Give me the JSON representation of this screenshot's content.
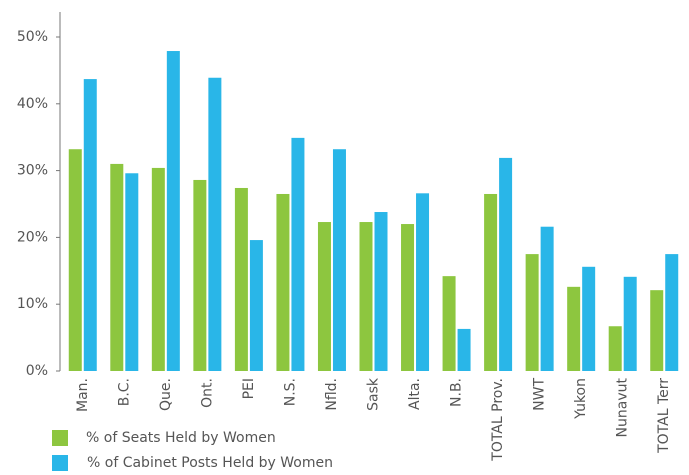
{
  "chart_data": {
    "type": "bar",
    "categories": [
      "Man.",
      "B.C.",
      "Que.",
      "Ont.",
      "PEI",
      "N.S.",
      "Nfld.",
      "Sask",
      "Alta.",
      "N.B.",
      "TOTAL Prov.",
      "NWT",
      "Yukon",
      "Nunavut",
      "TOTAL Terr"
    ],
    "series": [
      {
        "name": "% of Seats Held by Women",
        "color": "#8dc63f",
        "values": [
          33.2,
          31.0,
          30.4,
          28.6,
          27.4,
          26.5,
          22.3,
          22.3,
          22.0,
          14.2,
          26.5,
          17.5,
          12.6,
          6.7,
          12.1
        ]
      },
      {
        "name": "% of Cabinet Posts Held by Women",
        "color": "#29b6e8",
        "values": [
          43.7,
          29.6,
          47.9,
          43.9,
          19.6,
          34.9,
          33.2,
          23.8,
          26.6,
          6.3,
          31.9,
          21.6,
          15.6,
          14.1,
          17.5
        ]
      }
    ],
    "ylim": [
      0,
      50
    ],
    "yticks": [
      {
        "value": 0,
        "label": "0%"
      },
      {
        "value": 10,
        "label": "10%"
      },
      {
        "value": 20,
        "label": "20%"
      },
      {
        "value": 30,
        "label": "30%"
      },
      {
        "value": 40,
        "label": "40%"
      },
      {
        "value": 50,
        "label": "50%"
      }
    ]
  }
}
